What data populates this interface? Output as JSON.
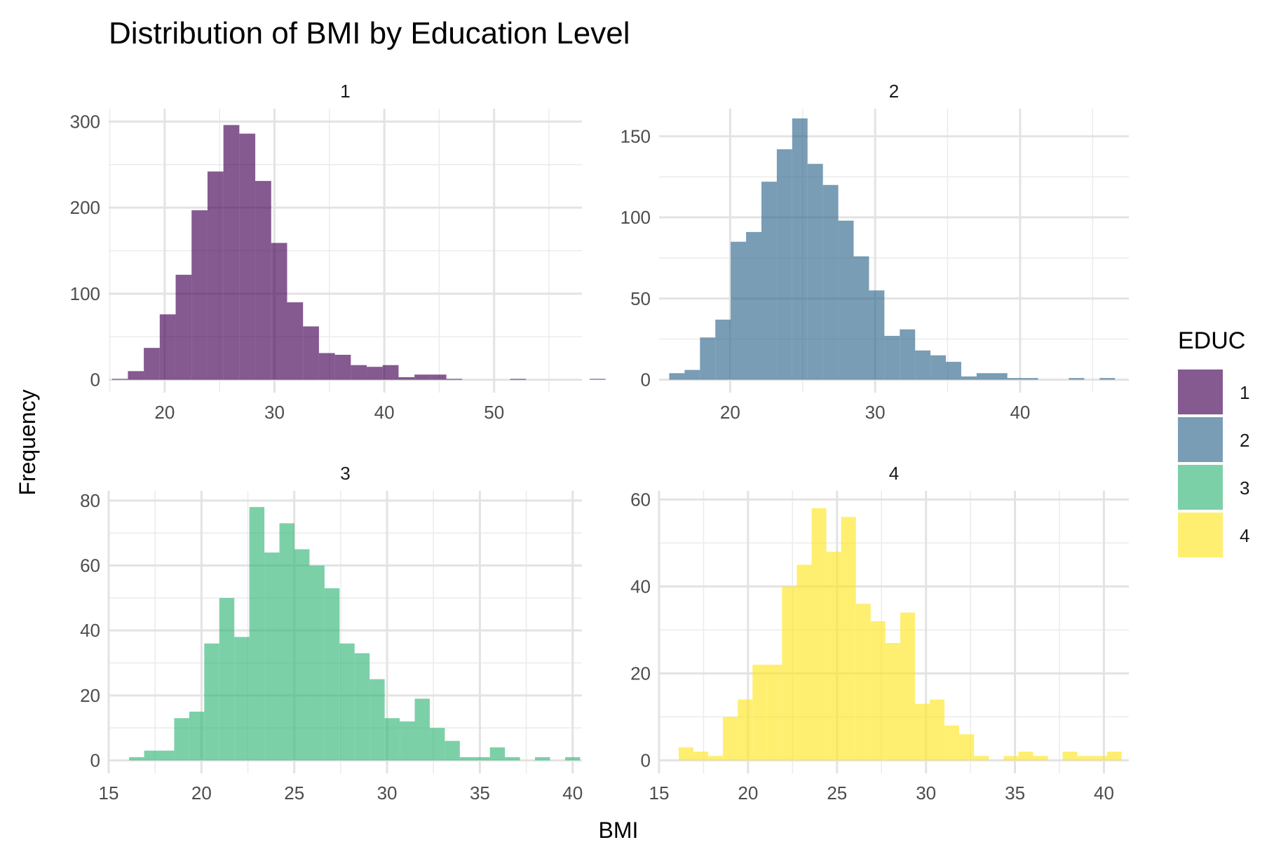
{
  "chart_data": {
    "type": "bar",
    "title": "Distribution of BMI by Education Level",
    "xlabel": "BMI",
    "ylabel": "Frequency",
    "legend": {
      "title": "EDUC",
      "position": "right",
      "entries": [
        {
          "label": "1",
          "color": "#440154"
        },
        {
          "label": "2",
          "color": "#31688E"
        },
        {
          "label": "3",
          "color": "#35B779"
        },
        {
          "label": "4",
          "color": "#FDE725"
        }
      ]
    },
    "bar_opacity": 0.65,
    "grid": true,
    "panels": [
      {
        "name": "1",
        "color": "#440154",
        "xlim": [
          14.9,
          58.0
        ],
        "ylim": [
          -15,
          315
        ],
        "xticks": [
          20,
          30,
          40,
          50
        ],
        "yticks": [
          0,
          100,
          200,
          300
        ],
        "bin_start": 15.2,
        "bin_width": 1.45,
        "counts": [
          1,
          10,
          37,
          76,
          122,
          197,
          242,
          296,
          286,
          231,
          159,
          90,
          62,
          31,
          29,
          17,
          15,
          17,
          3,
          6,
          6,
          1,
          0,
          0,
          0,
          1,
          0,
          0,
          0,
          0,
          1
        ]
      },
      {
        "name": "2",
        "color": "#31688E",
        "xlim": [
          15.1,
          47.5
        ],
        "ylim": [
          -8,
          167
        ],
        "xticks": [
          20,
          30,
          40
        ],
        "yticks": [
          0,
          50,
          100,
          150
        ],
        "bin_start": 15.8,
        "bin_width": 1.06,
        "counts": [
          4,
          6,
          26,
          37,
          85,
          91,
          122,
          142,
          161,
          133,
          120,
          98,
          76,
          55,
          27,
          31,
          18,
          15,
          11,
          2,
          4,
          4,
          1,
          1,
          0,
          0,
          1,
          0,
          1
        ]
      },
      {
        "name": "3",
        "color": "#35B779",
        "xlim": [
          15,
          40.5
        ],
        "ylim": [
          -4,
          83
        ],
        "xticks": [
          15,
          20,
          25,
          30,
          35,
          40
        ],
        "yticks": [
          0,
          20,
          40,
          60,
          80
        ],
        "bin_start": 16.1,
        "bin_width": 0.81,
        "counts": [
          1,
          3,
          3,
          13,
          15,
          36,
          50,
          38,
          78,
          64,
          73,
          65,
          60,
          53,
          36,
          33,
          25,
          13,
          12,
          19,
          10,
          6,
          1,
          1,
          4,
          1,
          0,
          1,
          0,
          1
        ]
      },
      {
        "name": "4",
        "color": "#FDE725",
        "xlim": [
          15,
          41.4
        ],
        "ylim": [
          -3,
          62
        ],
        "xticks": [
          15,
          20,
          25,
          30,
          35,
          40
        ],
        "yticks": [
          0,
          20,
          40,
          60
        ],
        "bin_start": 16.1,
        "bin_width": 0.83,
        "counts": [
          3,
          2,
          1,
          10,
          14,
          22,
          22,
          40,
          45,
          58,
          48,
          56,
          36,
          32,
          27,
          34,
          13,
          14,
          8,
          6,
          1,
          0,
          1,
          2,
          1,
          0,
          2,
          1,
          1,
          2
        ]
      }
    ]
  }
}
